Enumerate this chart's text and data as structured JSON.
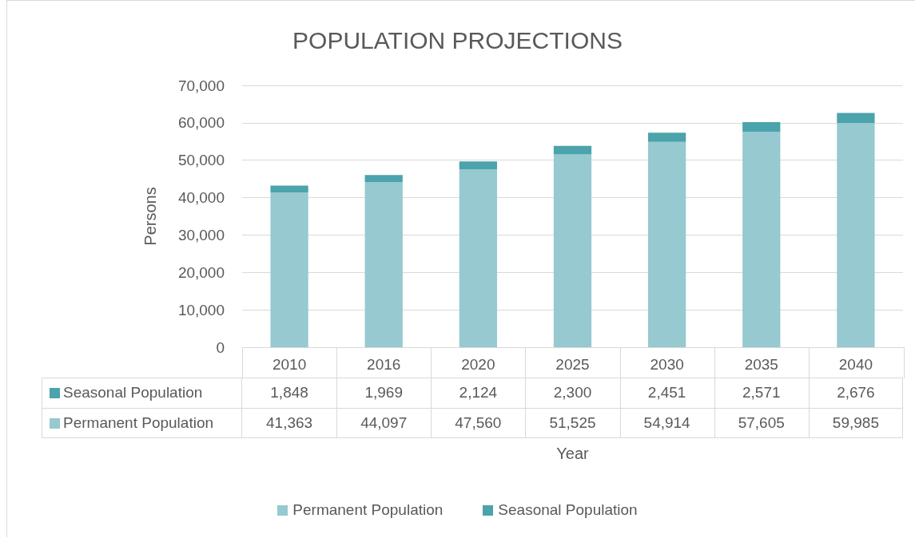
{
  "chart_data": {
    "type": "bar",
    "title": "POPULATION PROJECTIONS",
    "xlabel": "Year",
    "ylabel": "Persons",
    "categories": [
      "2010",
      "2016",
      "2020",
      "2025",
      "2030",
      "2035",
      "2040"
    ],
    "series": [
      {
        "name": "Permanent Population",
        "color": "#96c9d0",
        "values": [
          41363,
          44097,
          47560,
          51525,
          54914,
          57605,
          59985
        ],
        "value_labels": [
          "41,363",
          "44,097",
          "47,560",
          "51,525",
          "54,914",
          "57,605",
          "59,985"
        ]
      },
      {
        "name": "Seasonal Population",
        "color": "#4ba3ab",
        "values": [
          1848,
          1969,
          2124,
          2300,
          2451,
          2571,
          2676
        ],
        "value_labels": [
          "1,848",
          "1,969",
          "2,124",
          "2,300",
          "2,451",
          "2,571",
          "2,676"
        ]
      }
    ],
    "stacked": true,
    "ylim": [
      0,
      70000
    ],
    "yticks": [
      0,
      {
        "value": 10000,
        "label": "10,000"
      },
      {
        "value": 20000,
        "label": "20,000"
      },
      {
        "value": 30000,
        "label": "30,000"
      },
      {
        "value": 40000,
        "label": "40,000"
      },
      {
        "value": 50000,
        "label": "50,000"
      },
      {
        "value": 60000,
        "label": "60,000"
      },
      {
        "value": 70000,
        "label": "70,000"
      }
    ],
    "grid": "y",
    "legend": "bottom"
  }
}
